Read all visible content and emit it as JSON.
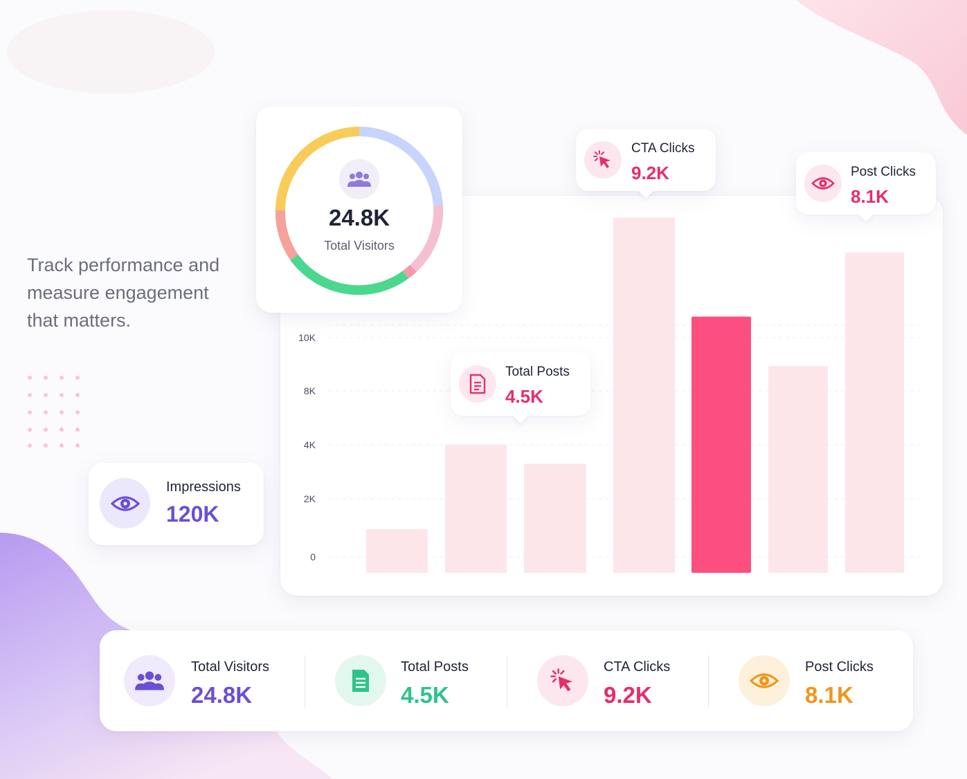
{
  "tagline": "Track performance and measure engagement that matters.",
  "donut": {
    "value": "24.8K",
    "label": "Total Visitors",
    "icon": "users-icon"
  },
  "callouts": {
    "cta": {
      "label": "CTA Clicks",
      "value": "9.2K",
      "icon": "cursor-click-icon"
    },
    "post": {
      "label": "Post Clicks",
      "value": "8.1K",
      "icon": "eye-icon"
    },
    "posts": {
      "label": "Total Posts",
      "value": "4.5K",
      "icon": "document-icon"
    }
  },
  "impressions": {
    "label": "Impressions",
    "value": "120K",
    "icon": "eye-icon"
  },
  "stats": [
    {
      "label": "Total Visitors",
      "value": "24.8K",
      "icon": "users-icon",
      "color": "#6a4fd6",
      "bg": "#efeafc"
    },
    {
      "label": "Total Posts",
      "value": "4.5K",
      "icon": "document-icon",
      "color": "#2fc38a",
      "bg": "#e2f7ee"
    },
    {
      "label": "CTA Clicks",
      "value": "9.2K",
      "icon": "cursor-click-icon",
      "color": "#e62e68",
      "bg": "#fde7ee"
    },
    {
      "label": "Post Clicks",
      "value": "8.1K",
      "icon": "eye-icon",
      "color": "#f0961c",
      "bg": "#fef1dc"
    }
  ],
  "colors": {
    "accent_pink": "#fd4f7f",
    "bar_light": "#fde6ea",
    "purple": "#6a4fd6",
    "green": "#2fc38a",
    "orange": "#f0961c"
  },
  "chart_data": {
    "type": "bar",
    "y_ticks": [
      "0",
      "2K",
      "4K",
      "8K",
      "10K"
    ],
    "values": [
      1500,
      4400,
      3750,
      12200,
      8800,
      7100,
      11000
    ],
    "highlight_index": 4,
    "ylim": [
      0,
      12000
    ],
    "grid": true,
    "legend": "none",
    "xlabel": "",
    "ylabel": ""
  }
}
